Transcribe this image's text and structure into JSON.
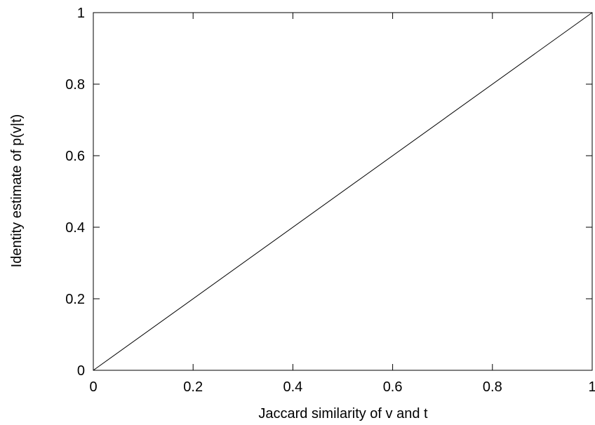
{
  "chart_data": {
    "type": "line",
    "title": "",
    "xlabel": "Jaccard similarity of v and t",
    "ylabel": "Identity estimate of p(v|t)",
    "xlim": [
      0,
      1
    ],
    "ylim": [
      0,
      1
    ],
    "x_ticks": [
      {
        "value": 0,
        "label": "0"
      },
      {
        "value": 0.2,
        "label": "0.2"
      },
      {
        "value": 0.4,
        "label": "0.4"
      },
      {
        "value": 0.6,
        "label": "0.6"
      },
      {
        "value": 0.8,
        "label": "0.8"
      },
      {
        "value": 1,
        "label": "1"
      }
    ],
    "y_ticks": [
      {
        "value": 0,
        "label": "0"
      },
      {
        "value": 0.2,
        "label": "0.2"
      },
      {
        "value": 0.4,
        "label": "0.4"
      },
      {
        "value": 0.6,
        "label": "0.6"
      },
      {
        "value": 0.8,
        "label": "0.8"
      },
      {
        "value": 1,
        "label": "1"
      }
    ],
    "grid": false,
    "series": [
      {
        "x": [
          0,
          1
        ],
        "y": [
          0,
          1
        ],
        "color": "#000000"
      }
    ]
  }
}
